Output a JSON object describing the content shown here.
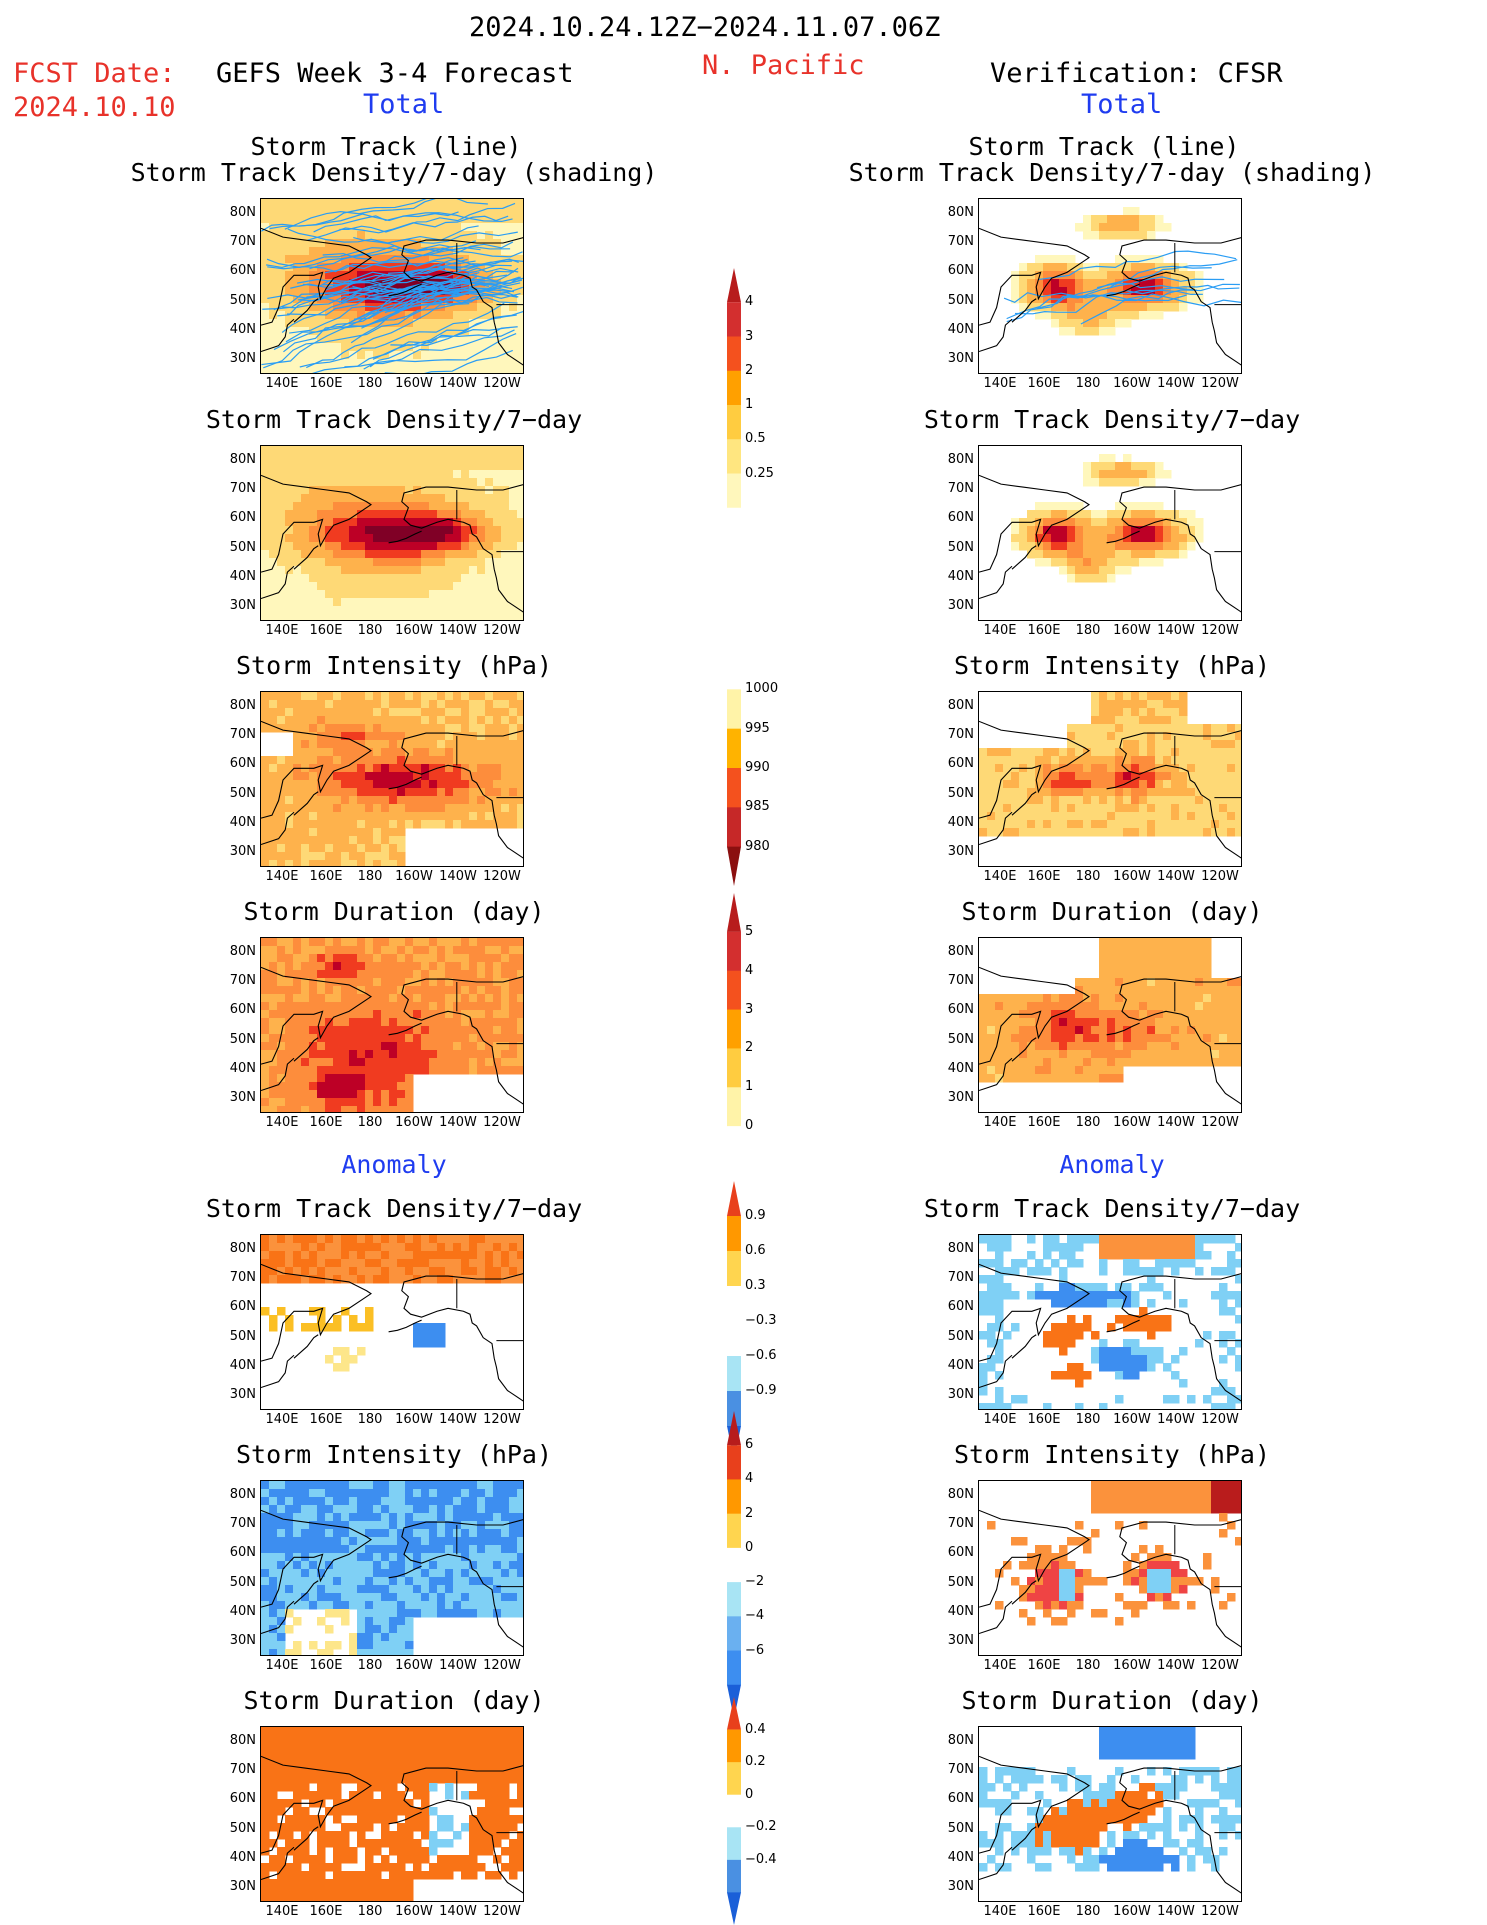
{
  "header": {
    "period": "2024.10.24.12Z−2024.11.07.06Z",
    "fcst_date_label": "FCST Date:",
    "fcst_date": "2024.10.10",
    "forecast_title": "GEFS Week 3-4 Forecast",
    "region": "N. Pacific",
    "verification_title": "Verification: CFSR",
    "total_left": "Total",
    "total_right": "Total",
    "anomaly_left": "Anomaly",
    "anomaly_right": "Anomaly"
  },
  "panel_titles": {
    "track_line": "Storm Track (line)",
    "track_density_shading": "Storm Track Density/7-day (shading)",
    "track_density": "Storm Track Density/7−day",
    "intensity": "Storm Intensity (hPa)",
    "duration": "Storm Duration (day)"
  },
  "axes": {
    "x_ticks": [
      "140E",
      "160E",
      "180",
      "160W",
      "140W",
      "120W"
    ],
    "y_ticks": [
      "80N",
      "70N",
      "60N",
      "50N",
      "40N",
      "30N"
    ]
  },
  "colorbars": {
    "density_total": [
      "4",
      "3",
      "2",
      "1",
      "0.5",
      "0.25"
    ],
    "intensity_total": [
      "1000",
      "995",
      "990",
      "985",
      "980"
    ],
    "duration_total": [
      "5",
      "4",
      "3",
      "2",
      "1",
      "0"
    ],
    "density_anom": [
      "0.9",
      "0.6",
      "0.3",
      "−0.3",
      "−0.6",
      "−0.9"
    ],
    "intensity_anom": [
      "6",
      "4",
      "2",
      "0",
      "−2",
      "−4",
      "−6"
    ],
    "duration_anom": [
      "0.4",
      "0.2",
      "0",
      "−0.2",
      "−0.4"
    ]
  },
  "colors": {
    "ramp_warm": [
      "#fff7bc",
      "#fed976",
      "#feb24c",
      "#fd8d3c",
      "#f03b20",
      "#bd0026",
      "#800026"
    ],
    "ramp_cool": [
      "#c6f0f7",
      "#7fd0f5",
      "#3d8ef0",
      "#1a5fd8"
    ],
    "track_line": "#2a9df4",
    "coast": "#000000"
  },
  "chart_data": [
    {
      "type": "heatmap",
      "title": "Storm Track (line) / Storm Track Density/7-day (shading)",
      "column": "GEFS Week 3-4 Forecast",
      "field": "density_total",
      "pattern": "forecast_density",
      "tracks": true
    },
    {
      "type": "heatmap",
      "title": "Storm Track Density/7-day",
      "column": "GEFS Week 3-4 Forecast",
      "field": "density_total",
      "pattern": "forecast_density"
    },
    {
      "type": "heatmap",
      "title": "Storm Intensity (hPa)",
      "column": "GEFS Week 3-4 Forecast",
      "field": "intensity_total",
      "pattern": "forecast_intensity"
    },
    {
      "type": "heatmap",
      "title": "Storm Duration (day)",
      "column": "GEFS Week 3-4 Forecast",
      "field": "duration_total",
      "pattern": "forecast_duration"
    },
    {
      "type": "heatmap",
      "title": "Storm Track Density/7-day",
      "column": "GEFS Week 3-4 Forecast",
      "field": "density_anom",
      "pattern": "forecast_density_anom"
    },
    {
      "type": "heatmap",
      "title": "Storm Intensity (hPa)",
      "column": "GEFS Week 3-4 Forecast",
      "field": "intensity_anom",
      "pattern": "forecast_intensity_anom"
    },
    {
      "type": "heatmap",
      "title": "Storm Duration (day)",
      "column": "GEFS Week 3-4 Forecast",
      "field": "duration_anom",
      "pattern": "forecast_duration_anom"
    },
    {
      "type": "heatmap",
      "title": "Storm Track (line) / Storm Track Density/7-day (shading)",
      "column": "Verification: CFSR",
      "field": "density_total",
      "pattern": "verif_density",
      "tracks": true
    },
    {
      "type": "heatmap",
      "title": "Storm Track Density/7-day",
      "column": "Verification: CFSR",
      "field": "density_total",
      "pattern": "verif_density"
    },
    {
      "type": "heatmap",
      "title": "Storm Intensity (hPa)",
      "column": "Verification: CFSR",
      "field": "intensity_total",
      "pattern": "verif_intensity"
    },
    {
      "type": "heatmap",
      "title": "Storm Duration (day)",
      "column": "Verification: CFSR",
      "field": "duration_total",
      "pattern": "verif_duration"
    },
    {
      "type": "heatmap",
      "title": "Storm Track Density/7-day",
      "column": "Verification: CFSR",
      "field": "density_anom",
      "pattern": "verif_density_anom"
    },
    {
      "type": "heatmap",
      "title": "Storm Intensity (hPa)",
      "column": "Verification: CFSR",
      "field": "intensity_anom",
      "pattern": "verif_intensity_anom"
    },
    {
      "type": "heatmap",
      "title": "Storm Duration (day)",
      "column": "Verification: CFSR",
      "field": "duration_anom",
      "pattern": "verif_duration_anom"
    }
  ]
}
